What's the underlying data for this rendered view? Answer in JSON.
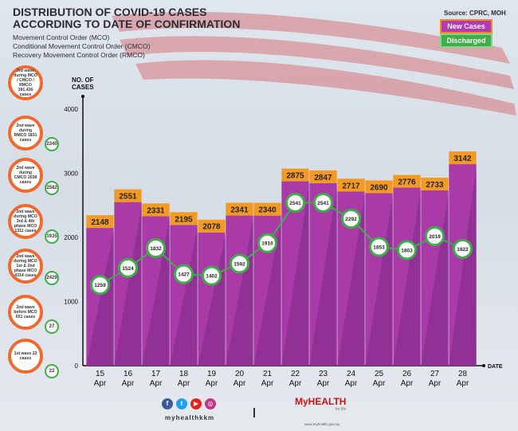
{
  "header": {
    "title_line1": "DISTRIBUTION OF COVID-19 CASES",
    "title_line2": "ACCORDING TO DATE OF CONFIRMATION",
    "sub1": "Movement Control Order (MCO)",
    "sub2": "Conditional Movement Control Order (CMCO)",
    "sub3": "Recovery Movement Control Order (RMCO)",
    "source": "Source: CPRC, MOH"
  },
  "legend": {
    "new": "New Cases",
    "discharged": "Discharged"
  },
  "waves": [
    {
      "text": "3rd wave during MCO / CMCO / RMCO 391,426 cases",
      "badge": ""
    },
    {
      "text": "2nd wave during RMCO 1831 cases",
      "badge": "2340"
    },
    {
      "text": "2nd wave during CMCO 2038 cases",
      "badge": "2582"
    },
    {
      "text": "2nd wave during MCO 3rd & 4th phase MCO 1311 cases",
      "badge": "1935"
    },
    {
      "text": "2nd wave during MCO 1st & 2nd phase MCO 4314 cases",
      "badge": "2429"
    },
    {
      "text": "2nd wave before MCO 651 cases",
      "badge": "27"
    },
    {
      "text": "1st wave 22 cases",
      "badge": "22"
    }
  ],
  "chart_data": {
    "type": "bar",
    "title": "DISTRIBUTION OF COVID-19 CASES ACCORDING TO DATE OF CONFIRMATION",
    "ylabel": "NO. OF CASES",
    "xlabel": "DATE",
    "ylim": [
      0,
      4000
    ],
    "yticks": [
      0,
      1000,
      2000,
      3000,
      4000
    ],
    "categories": [
      [
        "15",
        "Apr"
      ],
      [
        "16",
        "Apr"
      ],
      [
        "17",
        "Apr"
      ],
      [
        "18",
        "Apr"
      ],
      [
        "19",
        "Apr"
      ],
      [
        "20",
        "Apr"
      ],
      [
        "21",
        "Apr"
      ],
      [
        "22",
        "Apr"
      ],
      [
        "23",
        "Apr"
      ],
      [
        "24",
        "Apr"
      ],
      [
        "25",
        "Apr"
      ],
      [
        "26",
        "Apr"
      ],
      [
        "27",
        "Apr"
      ],
      [
        "28",
        "Apr"
      ]
    ],
    "series": [
      {
        "name": "New Cases",
        "type": "bar",
        "color": "#a93aa8",
        "label_color": "#f39a24",
        "values": [
          2148,
          2551,
          2331,
          2195,
          2078,
          2341,
          2340,
          2875,
          2847,
          2717,
          2690,
          2776,
          2733,
          3142
        ]
      },
      {
        "name": "Discharged",
        "type": "line",
        "color": "#3fae49",
        "values": [
          1259,
          1524,
          1832,
          1427,
          1402,
          1592,
          1910,
          2541,
          2541,
          2292,
          1853,
          1803,
          2019,
          1822
        ]
      }
    ]
  },
  "footer": {
    "handle": "myhealthkkm",
    "logo": "MyHEALTH",
    "tagline": "for life",
    "url": "www.myhealth.gov.my"
  }
}
